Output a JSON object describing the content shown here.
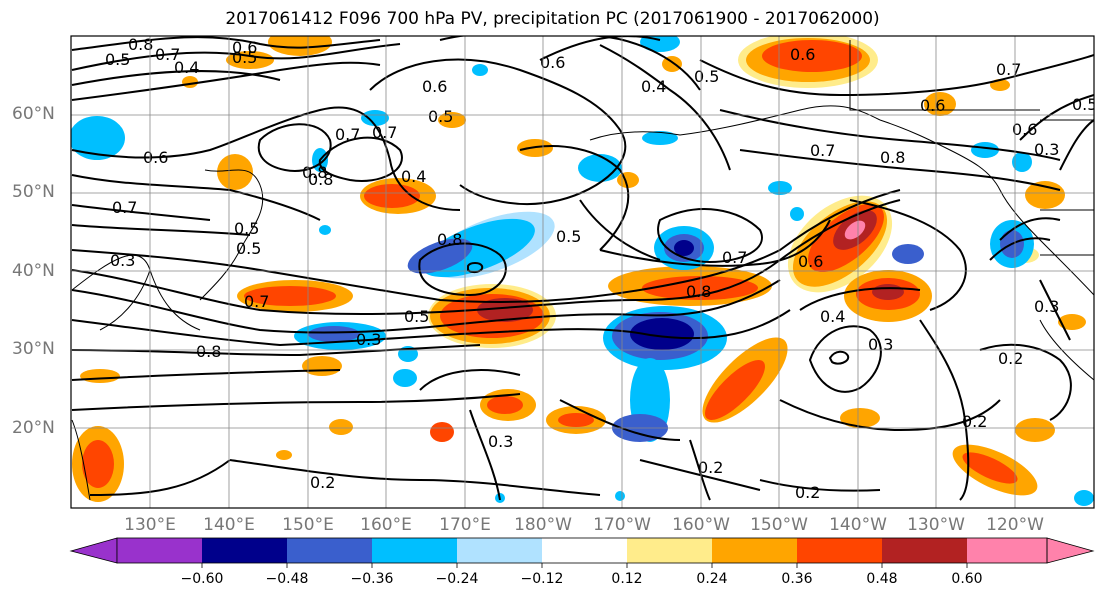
{
  "title": "2017061412 F096 700 hPa PV, precipitation PC (2017061900 - 2017062000)",
  "lat_labels": [
    "60°N",
    "50°N",
    "40°N",
    "30°N",
    "20°N"
  ],
  "lon_labels": [
    "130°E",
    "140°E",
    "150°E",
    "160°E",
    "170°E",
    "180°W",
    "170°W",
    "160°W",
    "150°W",
    "140°W",
    "130°W",
    "120°W"
  ],
  "colorbar": {
    "colors": [
      "#9932cc",
      "#00008b",
      "#3a5fcd",
      "#00bfff",
      "#b0e2ff",
      "#ffffff",
      "#ffec8b",
      "#ffa500",
      "#ff4500",
      "#b22222",
      "#ff82ab"
    ],
    "tick_labels": [
      "−0.60",
      "−0.48",
      "−0.36",
      "−0.24",
      "−0.12",
      "0.12",
      "0.24",
      "0.36",
      "0.48",
      "0.60"
    ]
  },
  "contour_labels": [
    "0.8",
    "0.7",
    "0.6",
    "0.5",
    "0.4",
    "0.6",
    "0.7",
    "0.5",
    "0.8",
    "0.7",
    "0.7",
    "0.6",
    "0.8",
    "0.4",
    "0.6",
    "0.4",
    "0.5",
    "0.8",
    "0.5",
    "0.7",
    "0.5",
    "0.6",
    "0.6",
    "0.8",
    "0.7",
    "0.3",
    "0.5",
    "0.8",
    "0.5",
    "0.7",
    "0.3",
    "0.8",
    "0.5",
    "0.6",
    "0.4",
    "0.3",
    "0.2",
    "0.3",
    "0.3",
    "0.2",
    "0.2",
    "0.2",
    "0.2",
    "0.3",
    "0.7",
    "0.6",
    "0.5"
  ]
}
